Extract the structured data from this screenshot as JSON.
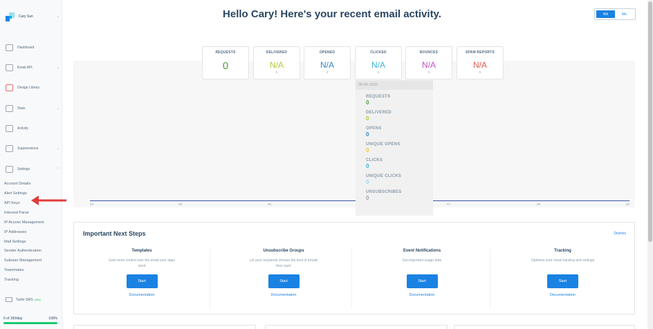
{
  "sidebar": {
    "account_name": "Cary Sun",
    "nav": [
      {
        "label": "Dashboard",
        "icon": "dashboard-icon"
      },
      {
        "label": "Email API",
        "icon": "email-api-icon"
      },
      {
        "label": "Design Library",
        "icon": "design-library-icon"
      },
      {
        "label": "Stats",
        "icon": "stats-icon"
      },
      {
        "label": "Activity",
        "icon": "activity-icon"
      },
      {
        "label": "Suppressions",
        "icon": "suppressions-icon"
      },
      {
        "label": "Settings",
        "icon": "settings-icon"
      }
    ],
    "settings_items": [
      "Account Details",
      "Alert Settings",
      "API Keys",
      "Inbound Parse",
      "IP Access Management",
      "IP Addresses",
      "Mail Settings",
      "Sender Authentication",
      "Subuser Management",
      "Teammates",
      "Tracking"
    ],
    "twilio_label": "Twilio SMS",
    "twilio_badge": "NEW",
    "progress_label": "0 of 100/day",
    "progress_percent_label": "100%",
    "progress_fraction": 1.0
  },
  "main": {
    "headline": "Hello Cary! Here's your recent email activity.",
    "toggle": {
      "week": "Wk",
      "month": "Mo"
    },
    "stats": [
      {
        "label": "REQUESTS",
        "value": "0",
        "sub": "",
        "color": "#589a3d"
      },
      {
        "label": "DELIVERED",
        "value": "N/A",
        "sub": "0",
        "color": "#b5c93a"
      },
      {
        "label": "OPENED",
        "value": "N/A",
        "sub": "0",
        "color": "#2d88c5"
      },
      {
        "label": "CLICKED",
        "value": "N/A",
        "sub": "0",
        "color": "#3cb4d6"
      },
      {
        "label": "BOUNCES",
        "value": "N/A",
        "sub": "0",
        "color": "#c64ec9"
      },
      {
        "label": "SPAM REPORTS",
        "value": "N/A",
        "sub": "0",
        "color": "#e2574c"
      }
    ],
    "x_ticks": [
      "05",
      "06",
      "06",
      "07",
      "08",
      "09",
      "10"
    ],
    "tooltip": {
      "date": "06-06-2022",
      "rows": [
        {
          "label": "REQUESTS",
          "value": "0",
          "color": "#589a3d"
        },
        {
          "label": "DELIVERED",
          "value": "0",
          "color": "#b5c93a"
        },
        {
          "label": "OPENS",
          "value": "0",
          "color": "#2d88c5"
        },
        {
          "label": "UNIQUE OPENS",
          "value": "0",
          "color": "#e8c547"
        },
        {
          "label": "CLICKS",
          "value": "0",
          "color": "#3cb4d6"
        },
        {
          "label": "UNIQUE CLICKS",
          "value": "0",
          "color": "#9ad6e8"
        },
        {
          "label": "UNSUBSCRIBES",
          "value": "0",
          "color": "#9aa5b1"
        }
      ]
    },
    "next_steps": {
      "title": "Important Next Steps",
      "dismiss": "Dismiss",
      "steps": [
        {
          "title": "Templates",
          "desc": "Gain more control over the email your apps send",
          "button": "Start",
          "link": "Documentation"
        },
        {
          "title": "Unsubscribe Groups",
          "desc": "Let your recipients choose the kind of emails they want",
          "button": "Start",
          "link": "Documentation"
        },
        {
          "title": "Event Notifications",
          "desc": "Get important usage data",
          "button": "Start",
          "link": "Documentation"
        },
        {
          "title": "Tracking",
          "desc": "Optimize your email tracking and settings",
          "button": "Start",
          "link": "Documentation"
        }
      ]
    }
  }
}
